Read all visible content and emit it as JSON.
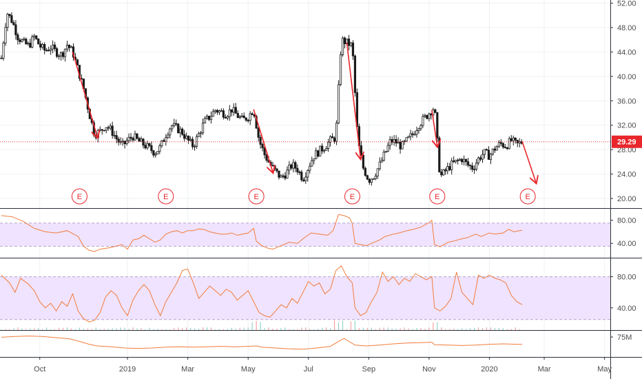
{
  "chart_data": [
    {
      "type": "candlestick",
      "title": "",
      "x_ticks": [
        "Oct",
        "2019",
        "Mar",
        "May",
        "Jul",
        "Sep",
        "Nov",
        "2020",
        "Mar",
        "May"
      ],
      "y_ticks": [
        "52.00",
        "48.00",
        "44.00",
        "40.00",
        "36.00",
        "32.00",
        "28.00",
        "24.00",
        "20.00"
      ],
      "ylim": [
        19,
        53
      ],
      "last_price": 29.29,
      "last_price_label": "29.29",
      "price_path": [
        [
          0,
          43
        ],
        [
          4,
          50.5
        ],
        [
          8,
          49
        ],
        [
          12,
          46.5
        ],
        [
          16,
          45.5
        ],
        [
          20,
          45
        ],
        [
          24,
          46.5
        ],
        [
          28,
          45
        ],
        [
          32,
          44.2
        ],
        [
          36,
          44.8
        ],
        [
          40,
          44
        ],
        [
          44,
          43.5
        ],
        [
          48,
          45.2
        ],
        [
          52,
          44
        ],
        [
          56,
          41
        ],
        [
          60,
          38
        ],
        [
          64,
          34
        ],
        [
          68,
          30.5
        ],
        [
          72,
          31
        ],
        [
          76,
          32
        ],
        [
          80,
          31.2
        ],
        [
          84,
          29.8
        ],
        [
          88,
          28.6
        ],
        [
          92,
          29.5
        ],
        [
          96,
          30.2
        ],
        [
          100,
          29.4
        ],
        [
          104,
          28.8
        ],
        [
          108,
          28.2
        ],
        [
          112,
          27.5
        ],
        [
          116,
          28.4
        ],
        [
          120,
          30.5
        ],
        [
          124,
          32
        ],
        [
          128,
          31.5
        ],
        [
          132,
          30.8
        ],
        [
          136,
          29.5
        ],
        [
          140,
          28.6
        ],
        [
          144,
          30.5
        ],
        [
          148,
          32.5
        ],
        [
          152,
          33.4
        ],
        [
          156,
          34.5
        ],
        [
          160,
          34.2
        ],
        [
          164,
          33.8
        ],
        [
          168,
          34.6
        ],
        [
          172,
          33.6
        ],
        [
          176,
          32.8
        ],
        [
          180,
          33.4
        ],
        [
          184,
          34.6
        ],
        [
          188,
          29.5
        ],
        [
          192,
          27.2
        ],
        [
          196,
          25.6
        ],
        [
          200,
          24.4
        ],
        [
          204,
          23.4
        ],
        [
          208,
          24.2
        ],
        [
          212,
          25.5
        ],
        [
          216,
          24.8
        ],
        [
          220,
          23.2
        ],
        [
          224,
          25.2
        ],
        [
          228,
          27
        ],
        [
          232,
          27.8
        ],
        [
          236,
          28.5
        ],
        [
          240,
          29.5
        ],
        [
          244,
          30
        ],
        [
          248,
          46
        ],
        [
          252,
          45.5
        ],
        [
          256,
          45
        ],
        [
          260,
          29.5
        ],
        [
          264,
          25
        ],
        [
          268,
          23
        ],
        [
          272,
          23.8
        ],
        [
          276,
          25.5
        ],
        [
          280,
          27.5
        ],
        [
          284,
          29.5
        ],
        [
          288,
          29.2
        ],
        [
          292,
          28.5
        ],
        [
          296,
          29.5
        ],
        [
          300,
          30.5
        ],
        [
          304,
          32
        ],
        [
          308,
          33
        ],
        [
          312,
          34
        ],
        [
          316,
          35
        ],
        [
          320,
          23.5
        ],
        [
          324,
          24.5
        ],
        [
          328,
          25.5
        ],
        [
          332,
          26
        ],
        [
          336,
          26.5
        ],
        [
          340,
          25.5
        ],
        [
          344,
          25
        ],
        [
          348,
          26.5
        ],
        [
          352,
          27.5
        ],
        [
          356,
          27
        ],
        [
          360,
          28.2
        ],
        [
          364,
          29
        ],
        [
          368,
          28.6
        ],
        [
          372,
          29.5
        ],
        [
          376,
          28.8
        ],
        [
          380,
          29.29
        ]
      ],
      "markers": [
        {
          "label": "E",
          "t": 57
        },
        {
          "label": "E",
          "t": 120
        },
        {
          "label": "E",
          "t": 186
        },
        {
          "label": "E",
          "t": 256
        },
        {
          "label": "E",
          "t": 318
        },
        {
          "label": "E",
          "t": 384
        }
      ],
      "color_up": "#ffffff",
      "color_down": "#1a1a1a",
      "color_wick": "#1a1a1a",
      "arrow_color": "#e8262c",
      "last_price_color": "#e8262c"
    },
    {
      "type": "line",
      "name": "oscillator-1",
      "y_ticks": [
        "80.00",
        "40.00"
      ],
      "ylim": [
        20,
        95
      ],
      "band": [
        35,
        75
      ],
      "values": [
        [
          0,
          88
        ],
        [
          8,
          86
        ],
        [
          16,
          78
        ],
        [
          24,
          66
        ],
        [
          32,
          60
        ],
        [
          40,
          58
        ],
        [
          48,
          62
        ],
        [
          56,
          52
        ],
        [
          60,
          35
        ],
        [
          64,
          28
        ],
        [
          68,
          26
        ],
        [
          72,
          30
        ],
        [
          80,
          33
        ],
        [
          88,
          38
        ],
        [
          92,
          30
        ],
        [
          96,
          46
        ],
        [
          100,
          48
        ],
        [
          104,
          54
        ],
        [
          108,
          48
        ],
        [
          112,
          42
        ],
        [
          116,
          46
        ],
        [
          120,
          56
        ],
        [
          124,
          60
        ],
        [
          128,
          62
        ],
        [
          132,
          58
        ],
        [
          136,
          62
        ],
        [
          140,
          62
        ],
        [
          144,
          65
        ],
        [
          148,
          64
        ],
        [
          152,
          60
        ],
        [
          156,
          58
        ],
        [
          160,
          56
        ],
        [
          164,
          56
        ],
        [
          168,
          58
        ],
        [
          172,
          54
        ],
        [
          176,
          56
        ],
        [
          180,
          58
        ],
        [
          184,
          66
        ],
        [
          186,
          44
        ],
        [
          190,
          36
        ],
        [
          194,
          32
        ],
        [
          198,
          30
        ],
        [
          204,
          36
        ],
        [
          210,
          42
        ],
        [
          216,
          40
        ],
        [
          220,
          48
        ],
        [
          226,
          58
        ],
        [
          232,
          56
        ],
        [
          238,
          54
        ],
        [
          242,
          62
        ],
        [
          246,
          90
        ],
        [
          250,
          88
        ],
        [
          254,
          84
        ],
        [
          256,
          74
        ],
        [
          258,
          40
        ],
        [
          262,
          38
        ],
        [
          266,
          36
        ],
        [
          270,
          40
        ],
        [
          276,
          46
        ],
        [
          280,
          52
        ],
        [
          286,
          56
        ],
        [
          290,
          58
        ],
        [
          296,
          62
        ],
        [
          300,
          64
        ],
        [
          306,
          68
        ],
        [
          312,
          76
        ],
        [
          314,
          80
        ],
        [
          316,
          38
        ],
        [
          320,
          34
        ],
        [
          326,
          42
        ],
        [
          330,
          44
        ],
        [
          336,
          48
        ],
        [
          340,
          50
        ],
        [
          346,
          56
        ],
        [
          350,
          52
        ],
        [
          356,
          58
        ],
        [
          360,
          56
        ],
        [
          366,
          58
        ],
        [
          370,
          64
        ],
        [
          374,
          60
        ],
        [
          378,
          62
        ],
        [
          380,
          63
        ]
      ],
      "line_color": "#f07c3a",
      "band_color": "#f0e3ff",
      "band_border_color": "#b4a3c9"
    },
    {
      "type": "line",
      "name": "oscillator-2",
      "y_ticks": [
        "80.00",
        "40.00"
      ],
      "ylim": [
        15,
        100
      ],
      "band": [
        25,
        80
      ],
      "values": [
        [
          0,
          82
        ],
        [
          6,
          72
        ],
        [
          10,
          60
        ],
        [
          14,
          78
        ],
        [
          20,
          70
        ],
        [
          24,
          62
        ],
        [
          28,
          48
        ],
        [
          32,
          40
        ],
        [
          36,
          46
        ],
        [
          40,
          36
        ],
        [
          44,
          48
        ],
        [
          48,
          42
        ],
        [
          52,
          58
        ],
        [
          56,
          36
        ],
        [
          60,
          26
        ],
        [
          64,
          22
        ],
        [
          68,
          24
        ],
        [
          72,
          34
        ],
        [
          76,
          54
        ],
        [
          80,
          62
        ],
        [
          84,
          56
        ],
        [
          88,
          40
        ],
        [
          92,
          30
        ],
        [
          96,
          50
        ],
        [
          100,
          62
        ],
        [
          104,
          70
        ],
        [
          108,
          62
        ],
        [
          112,
          44
        ],
        [
          116,
          30
        ],
        [
          120,
          48
        ],
        [
          124,
          60
        ],
        [
          128,
          72
        ],
        [
          132,
          88
        ],
        [
          136,
          90
        ],
        [
          140,
          72
        ],
        [
          144,
          52
        ],
        [
          148,
          60
        ],
        [
          152,
          68
        ],
        [
          156,
          62
        ],
        [
          160,
          56
        ],
        [
          164,
          64
        ],
        [
          168,
          60
        ],
        [
          172,
          50
        ],
        [
          176,
          56
        ],
        [
          180,
          62
        ],
        [
          184,
          48
        ],
        [
          188,
          34
        ],
        [
          192,
          30
        ],
        [
          196,
          28
        ],
        [
          200,
          36
        ],
        [
          204,
          44
        ],
        [
          208,
          40
        ],
        [
          212,
          52
        ],
        [
          216,
          46
        ],
        [
          220,
          60
        ],
        [
          224,
          74
        ],
        [
          228,
          68
        ],
        [
          232,
          72
        ],
        [
          236,
          58
        ],
        [
          240,
          64
        ],
        [
          244,
          88
        ],
        [
          248,
          94
        ],
        [
          252,
          80
        ],
        [
          256,
          72
        ],
        [
          258,
          40
        ],
        [
          262,
          30
        ],
        [
          266,
          34
        ],
        [
          270,
          48
        ],
        [
          274,
          60
        ],
        [
          278,
          86
        ],
        [
          282,
          74
        ],
        [
          286,
          80
        ],
        [
          290,
          70
        ],
        [
          294,
          78
        ],
        [
          298,
          74
        ],
        [
          302,
          84
        ],
        [
          306,
          80
        ],
        [
          310,
          76
        ],
        [
          314,
          80
        ],
        [
          316,
          40
        ],
        [
          320,
          36
        ],
        [
          324,
          42
        ],
        [
          328,
          52
        ],
        [
          332,
          86
        ],
        [
          336,
          60
        ],
        [
          340,
          52
        ],
        [
          344,
          44
        ],
        [
          348,
          82
        ],
        [
          352,
          78
        ],
        [
          356,
          82
        ],
        [
          360,
          78
        ],
        [
          364,
          76
        ],
        [
          368,
          72
        ],
        [
          372,
          56
        ],
        [
          376,
          48
        ],
        [
          380,
          44
        ]
      ],
      "line_color": "#f07c3a",
      "band_color": "#f0e3ff",
      "band_border_color": "#b4a3c9"
    },
    {
      "type": "line",
      "name": "volume-indicator",
      "y_ticks": [
        "75M"
      ],
      "ylim": [
        0,
        100
      ],
      "values": [
        [
          0,
          82
        ],
        [
          10,
          86
        ],
        [
          20,
          88
        ],
        [
          30,
          86
        ],
        [
          40,
          80
        ],
        [
          50,
          74
        ],
        [
          58,
          60
        ],
        [
          64,
          48
        ],
        [
          70,
          40
        ],
        [
          80,
          36
        ],
        [
          90,
          30
        ],
        [
          100,
          28
        ],
        [
          110,
          30
        ],
        [
          120,
          34
        ],
        [
          130,
          36
        ],
        [
          140,
          34
        ],
        [
          150,
          36
        ],
        [
          160,
          38
        ],
        [
          170,
          36
        ],
        [
          180,
          38
        ],
        [
          186,
          40
        ],
        [
          190,
          34
        ],
        [
          200,
          30
        ],
        [
          210,
          26
        ],
        [
          220,
          24
        ],
        [
          230,
          30
        ],
        [
          240,
          38
        ],
        [
          246,
          62
        ],
        [
          250,
          76
        ],
        [
          254,
          60
        ],
        [
          258,
          44
        ],
        [
          266,
          40
        ],
        [
          276,
          44
        ],
        [
          286,
          50
        ],
        [
          296,
          54
        ],
        [
          306,
          56
        ],
        [
          314,
          58
        ],
        [
          316,
          46
        ],
        [
          326,
          44
        ],
        [
          336,
          42
        ],
        [
          346,
          44
        ],
        [
          356,
          48
        ],
        [
          366,
          50
        ],
        [
          376,
          48
        ],
        [
          380,
          48
        ]
      ],
      "line_color": "#f07c3a"
    }
  ]
}
